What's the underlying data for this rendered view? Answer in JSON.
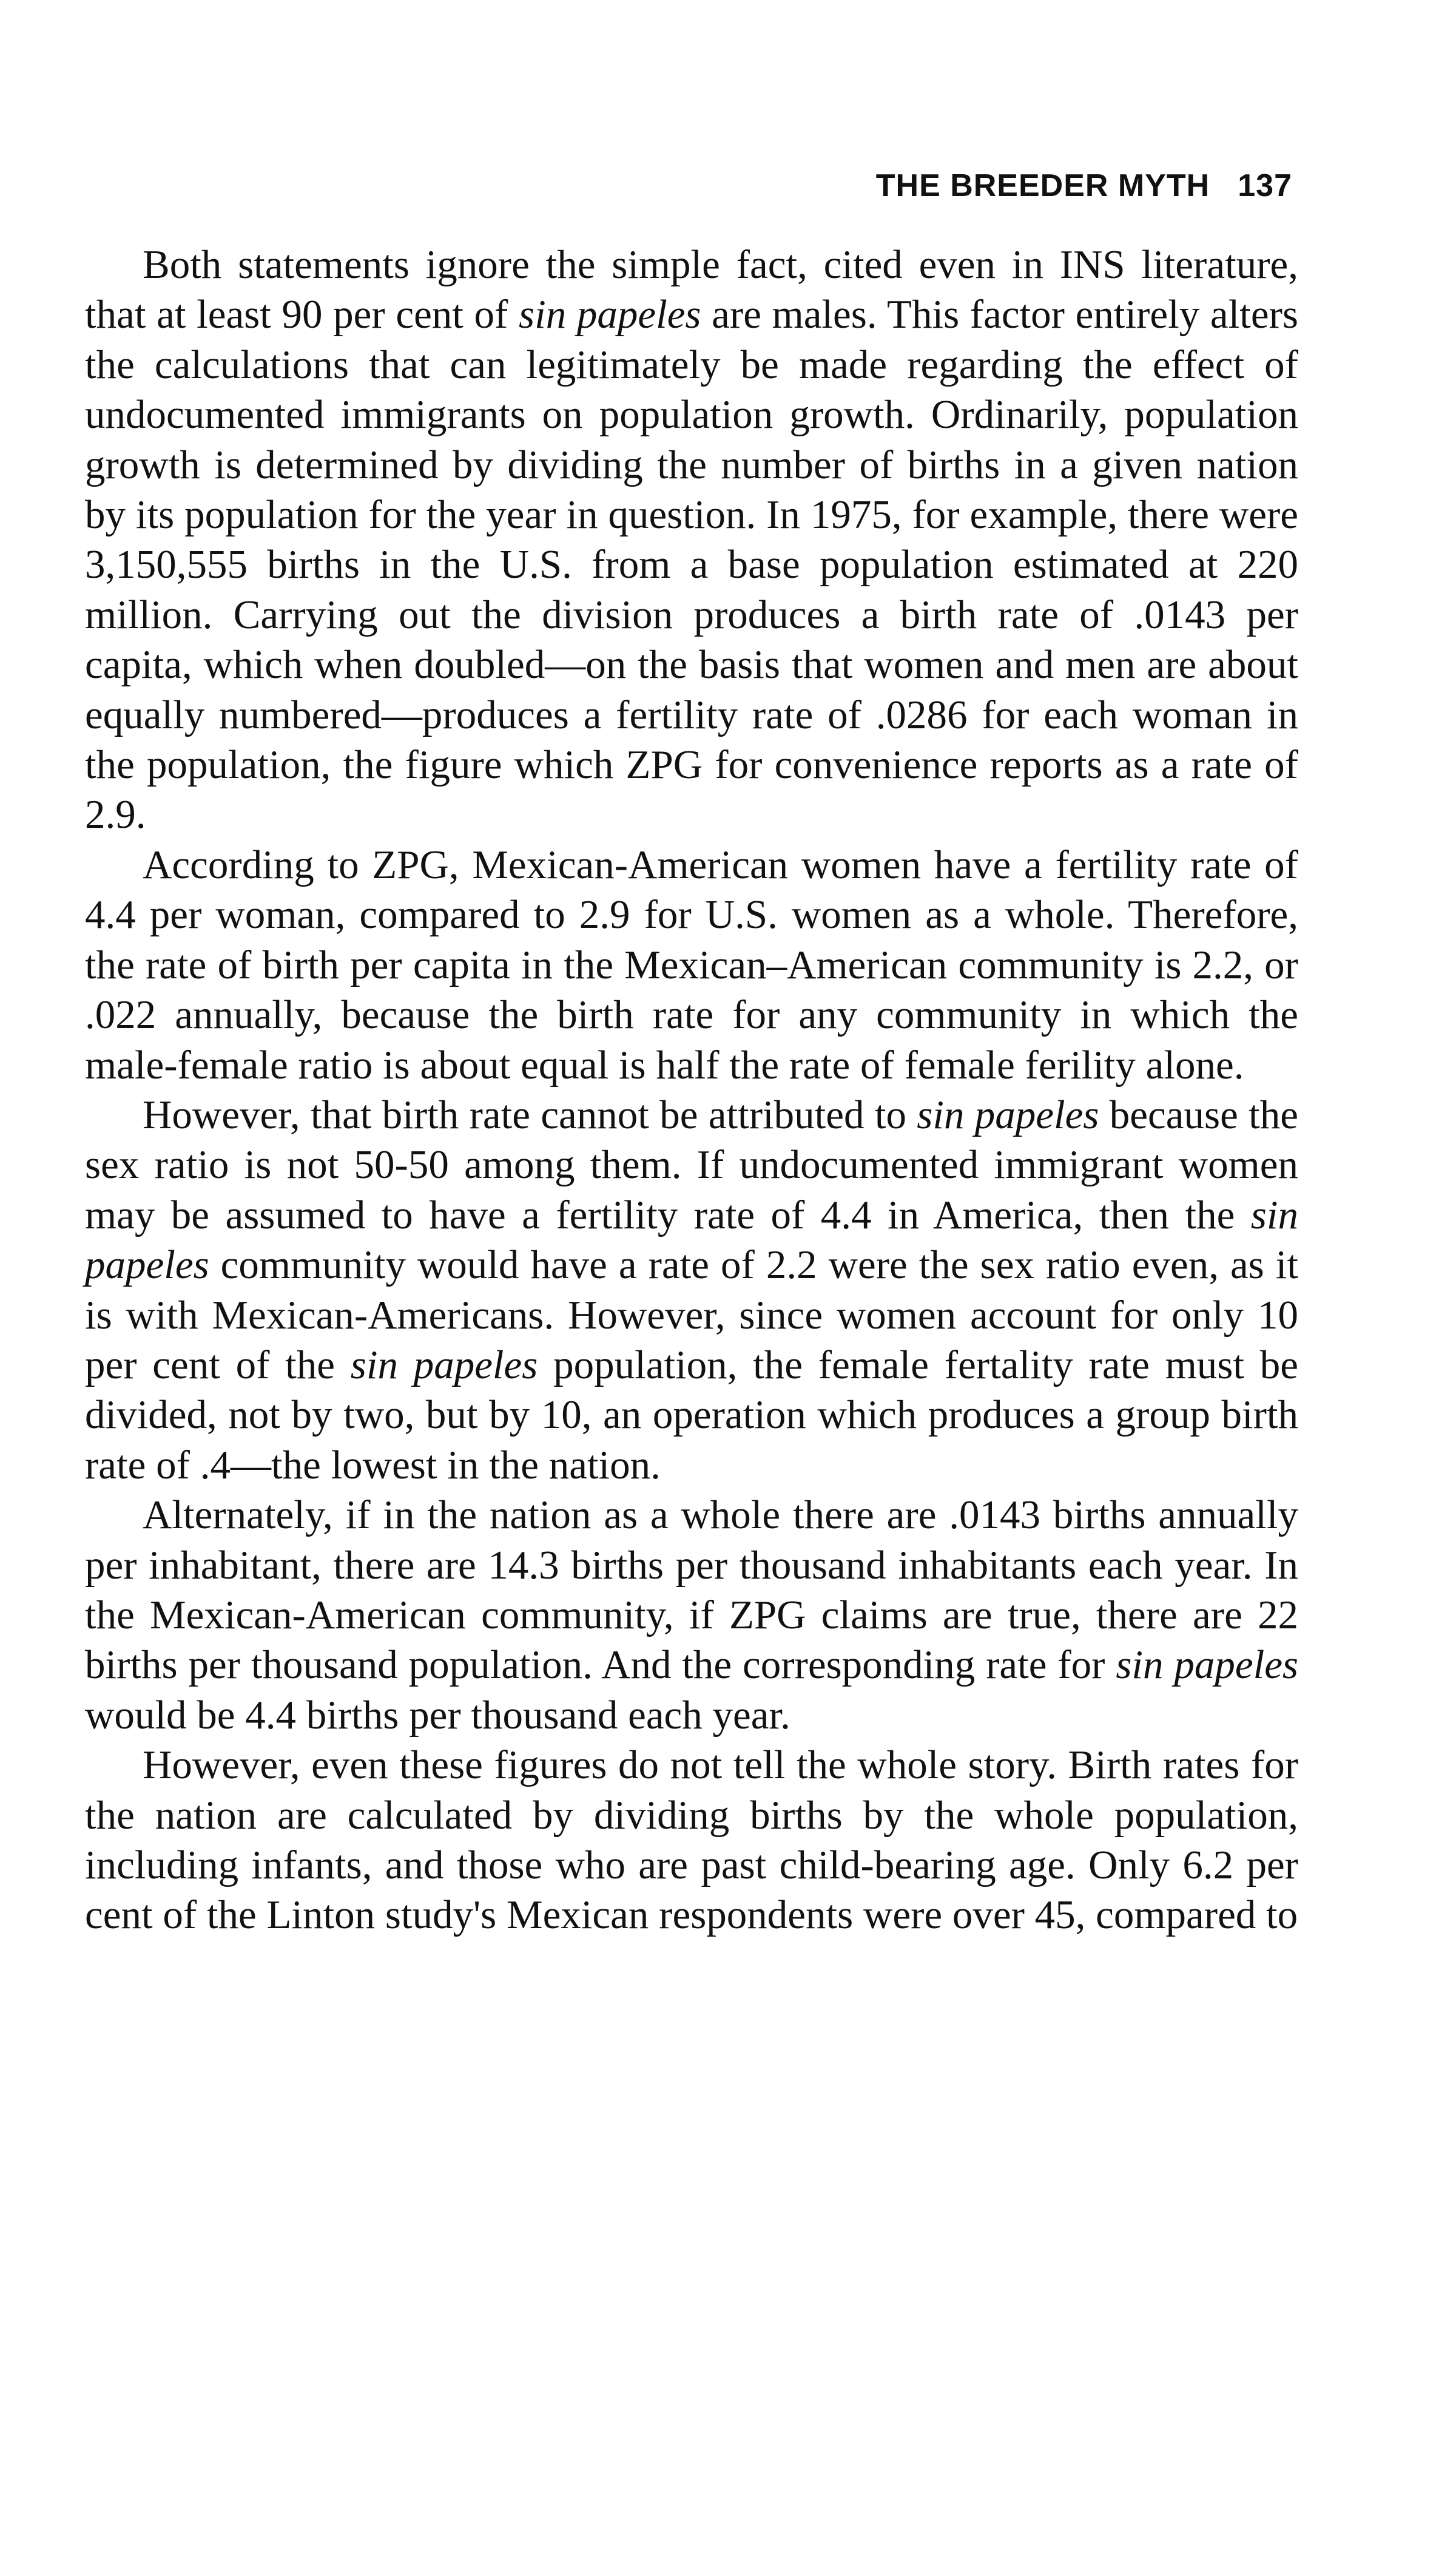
{
  "header": {
    "running_title": "THE BREEDER MYTH",
    "page_number": "137"
  },
  "paragraphs": [
    {
      "segments": [
        {
          "text": "Both statements ignore the simple fact, cited even in INS literature, that at least 90 per cent of "
        },
        {
          "text": "sin papeles",
          "italic": true
        },
        {
          "text": " are males. This factor entirely alters the calculations that can legitimately be made regarding the effect of undocumented immigrants on population growth. Ordinarily, population growth is determined by dividing the number of births in a given nation by its population for the year in question. In 1975, for example, there were 3,150,555 births in the U.S. from a base population estimated at 220 million. Carrying out the division produces a birth rate of .0143 per capita, which when doubled—on the basis that women and men are about equally numbered—produces a fertility rate of .0286 for each woman in the population, the figure which ZPG for convenience reports as a rate of 2.9."
        }
      ]
    },
    {
      "segments": [
        {
          "text": "According to ZPG, Mexican-American women have a fertility rate of 4.4 per woman, compared to 2.9 for U.S. women as a whole. Therefore, the rate of birth per capita in the Mexican–American community is 2.2, or .022 annually, because the birth rate for any community in which the male-female ratio is about equal is half the rate of female ferility alone."
        }
      ]
    },
    {
      "segments": [
        {
          "text": "However, that birth rate cannot be attributed to "
        },
        {
          "text": "sin papeles",
          "italic": true
        },
        {
          "text": " because the sex ratio is not 50-50 among them. If undocumented immigrant women may be assumed to have a fertility rate of 4.4 in America, then the "
        },
        {
          "text": "sin papeles",
          "italic": true
        },
        {
          "text": " community would have a rate of 2.2 were the sex ratio even, as it is with Mexican-Americans. However, since women account for only 10 per cent of the "
        },
        {
          "text": "sin papeles",
          "italic": true
        },
        {
          "text": " population, the female fertality rate must be divided, not by two, but by 10, an operation which produces a group birth rate of .4—the lowest in the nation."
        }
      ]
    },
    {
      "segments": [
        {
          "text": "Alternately, if in the nation as a whole there are .0143 births annually per inhabitant, there are 14.3 births per thousand inhabitants each year. In the Mexican-American community, if ZPG claims are true, there are 22 births per thousand population. And the corresponding rate for "
        },
        {
          "text": "sin papeles",
          "italic": true
        },
        {
          "text": " would be 4.4 births per thousand each year."
        }
      ]
    },
    {
      "segments": [
        {
          "text": "However, even these figures do not tell the whole story. Birth rates for the nation are calculated by dividing births by the whole population, including infants, and those who are past child-bearing age. Only 6.2 per cent of the Linton study's Mexican respondents were over 45, compared to"
        }
      ]
    }
  ]
}
